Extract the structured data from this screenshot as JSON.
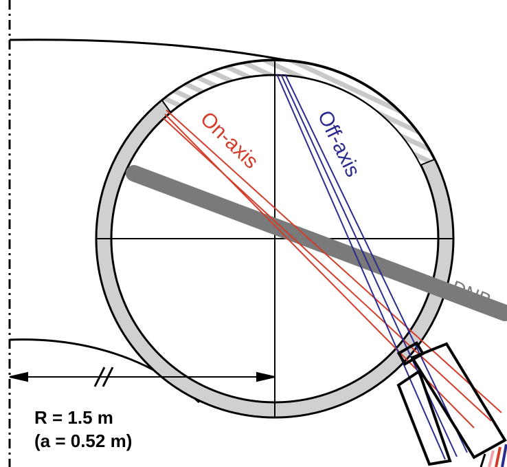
{
  "labels": {
    "on_axis": "On-axis",
    "off_axis": "Off-axis",
    "dnb": "DNB",
    "radius": "R = 1.5 m",
    "minor_radius": "(a = 0.52 m)"
  },
  "colors": {
    "on_axis": "#d23c2a",
    "off_axis": "#2b2b8f",
    "dnb": "#7a7a7a",
    "vessel_wall": "#d0d0d0",
    "outline": "#000000"
  }
}
